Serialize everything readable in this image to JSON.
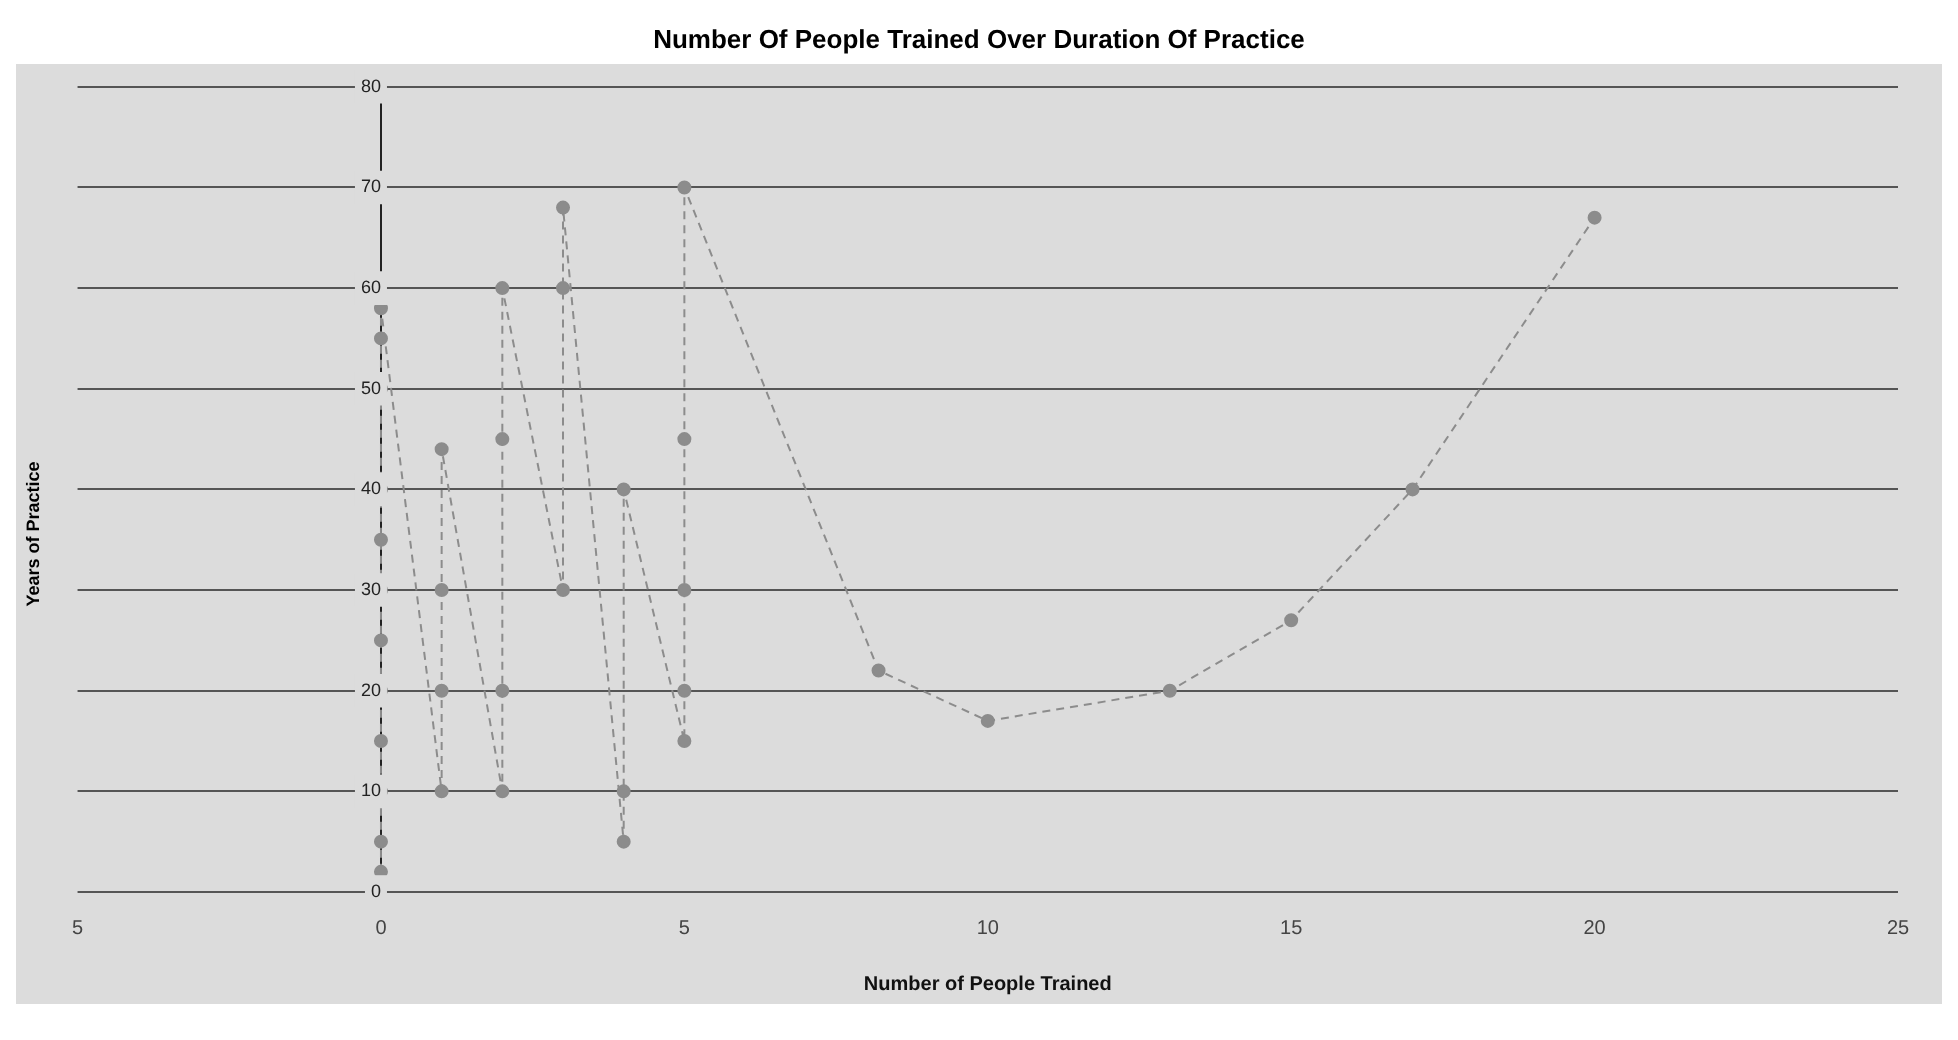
{
  "chart_data": {
    "type": "line",
    "title": "Number Of People Trained Over Duration Of Practice",
    "xlabel": "Number of People Trained",
    "ylabel": "Years of Practice",
    "series": [
      {
        "color": "#8c8c8c",
        "x": [
          0,
          0,
          0,
          0,
          0,
          0,
          0,
          0,
          0,
          0,
          0,
          0,
          1,
          1,
          1,
          1,
          2,
          2,
          2,
          2,
          3,
          3,
          3,
          4,
          4,
          4,
          5,
          5,
          5,
          5,
          5,
          8.2,
          10,
          13,
          15,
          17,
          20
        ],
        "values": [
          2,
          5,
          10,
          15,
          20,
          25,
          30,
          35,
          40,
          50,
          55,
          58,
          10,
          20,
          30,
          44,
          10,
          20,
          45,
          60,
          30,
          60,
          68,
          5,
          10,
          40,
          15,
          20,
          30,
          45,
          70,
          22,
          17,
          20,
          27,
          40,
          67
        ]
      }
    ],
    "xlim": [
      -5,
      25
    ],
    "xticks": [
      {
        "value": -5,
        "label": "5"
      },
      0,
      5,
      10,
      15,
      20,
      25
    ],
    "ylim": [
      0,
      80
    ],
    "yticks": [
      0,
      10,
      20,
      30,
      40,
      50,
      60,
      70,
      80
    ],
    "grid": "y",
    "legend": false,
    "marker": "circle",
    "line_style": "dashed"
  }
}
